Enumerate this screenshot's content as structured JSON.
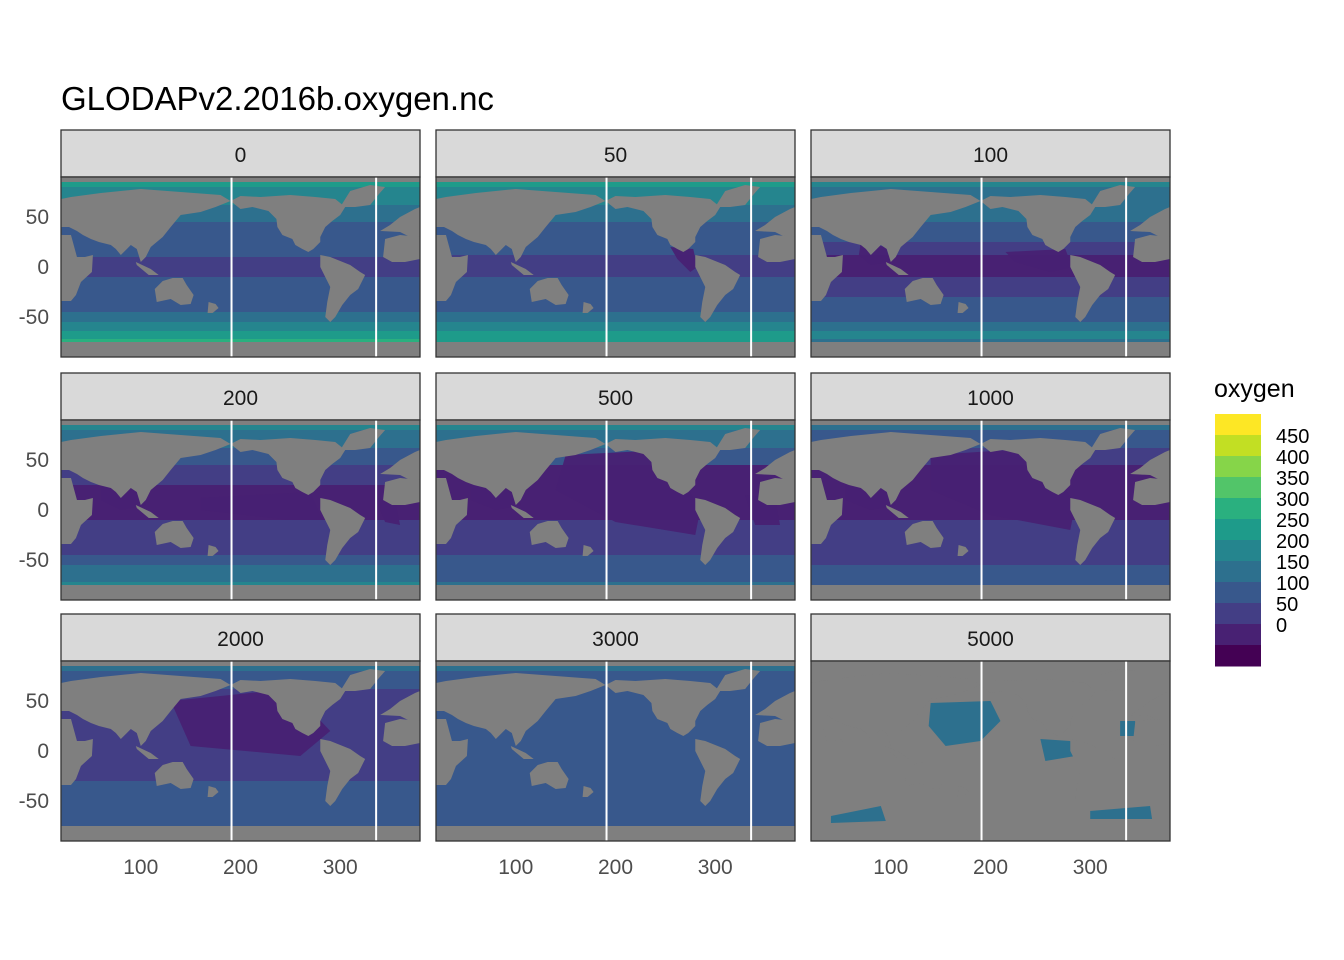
{
  "chart_data": {
    "type": "heatmap",
    "title": "GLODAPv2.2016b.oxygen.nc",
    "xlabel": "",
    "ylabel": "",
    "panels": [
      "0",
      "50",
      "100",
      "200",
      "500",
      "1000",
      "2000",
      "3000",
      "5000"
    ],
    "xlim": [
      20,
      380
    ],
    "ylim": [
      -90,
      90
    ],
    "x_ticks": [
      100,
      200,
      300
    ],
    "y_ticks": [
      50,
      0,
      -50
    ],
    "x_tick_labels": [
      "100",
      "200",
      "300"
    ],
    "y_tick_labels": [
      "50",
      "0",
      "-50"
    ],
    "vlines_x": [
      191,
      336
    ],
    "legend": {
      "title": "oxygen",
      "labels": [
        "450",
        "400",
        "350",
        "300",
        "250",
        "200",
        "150",
        "100",
        "50",
        "0"
      ],
      "colors": [
        "#FDE725",
        "#C2DF23",
        "#86D549",
        "#52C569",
        "#2AB07F",
        "#1E9B8A",
        "#25858E",
        "#2D708E",
        "#38588C",
        "#433E85",
        "#482173",
        "#440154"
      ],
      "placement": "right"
    },
    "land_color": "#7F7F7F",
    "grid": false
  }
}
